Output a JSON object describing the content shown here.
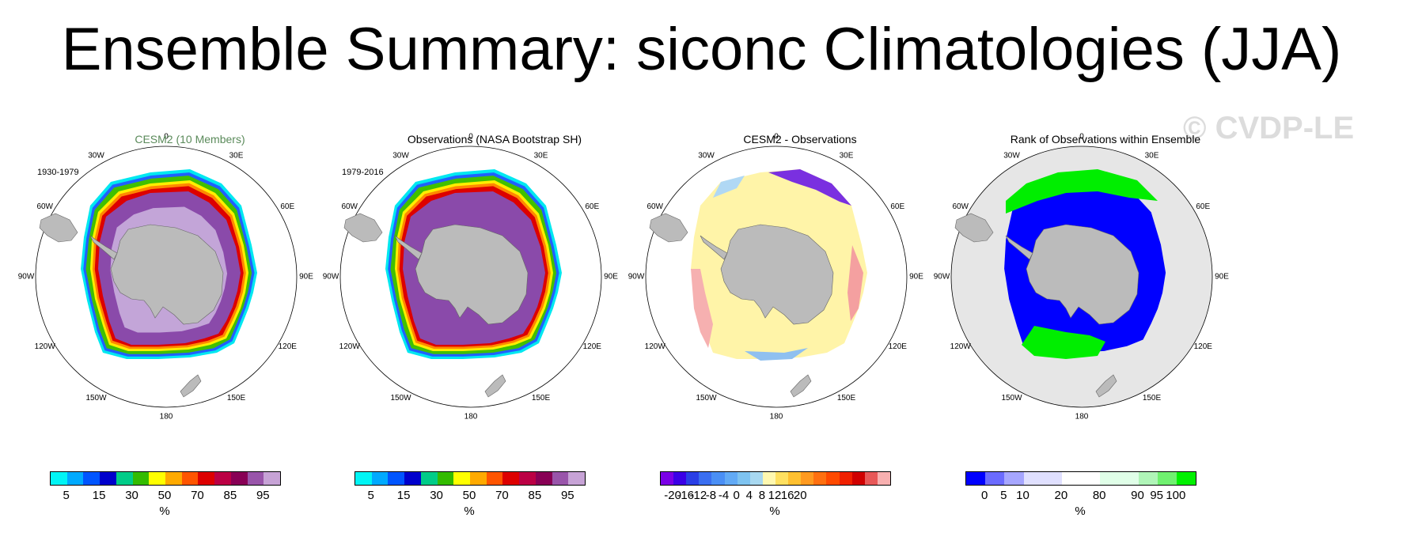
{
  "title": "Ensemble Summary: siconc Climatologies (JJA)",
  "watermark": "© CVDP-LE",
  "lon_labels": [
    "0",
    "30E",
    "60E",
    "90E",
    "120E",
    "150E",
    "180",
    "150W",
    "120W",
    "90W",
    "60W",
    "30W"
  ],
  "panels": [
    {
      "title": "CESM2 (10 Members)",
      "title_color": "#5a8a5a",
      "period": "1930-1979",
      "units": "%",
      "colors": [
        "#00f5f5",
        "#00aaff",
        "#0055ff",
        "#0000cc",
        "#00cc88",
        "#33bb00",
        "#ffff00",
        "#ffaa00",
        "#ff5500",
        "#dd0000",
        "#bb0044",
        "#880055",
        "#9955aa",
        "#c7a3d6"
      ],
      "tick_labels": [
        "5",
        "15",
        "30",
        "50",
        "70",
        "85",
        "95"
      ]
    },
    {
      "title": "Observations (NASA Bootstrap SH)",
      "title_color": "#000000",
      "period": "1979-2016",
      "units": "%",
      "colors": [
        "#00f5f5",
        "#00aaff",
        "#0055ff",
        "#0000cc",
        "#00cc88",
        "#33bb00",
        "#ffff00",
        "#ffaa00",
        "#ff5500",
        "#dd0000",
        "#bb0044",
        "#880055",
        "#9955aa",
        "#c7a3d6"
      ],
      "tick_labels": [
        "5",
        "15",
        "30",
        "50",
        "70",
        "85",
        "95"
      ]
    },
    {
      "title": "CESM2 - Observations",
      "title_color": "#000000",
      "period": "",
      "units": "%",
      "colors": [
        "#7a00e6",
        "#3b00e6",
        "#2a3fe6",
        "#3a6ef0",
        "#4a8ff5",
        "#62aaf5",
        "#7ec3f0",
        "#a8d8f0",
        "#fff8b0",
        "#ffe060",
        "#ffc030",
        "#ff9a20",
        "#ff7010",
        "#ff4a00",
        "#f02000",
        "#d00000",
        "#e85858",
        "#f8b0b0"
      ],
      "tick_labels": [
        "-20",
        "-16",
        "-12",
        "-8",
        "-4",
        "0",
        "4",
        "8",
        "12",
        "16",
        "20"
      ]
    },
    {
      "title": "Rank of Observations within Ensemble",
      "title_color": "#000000",
      "period": "",
      "units": "%",
      "colors": [
        "#0000ff",
        "#6b6bff",
        "#a6a6ff",
        "#e0e0ff",
        "#e0e0ff",
        "#ffffff",
        "#ffffff",
        "#e0ffe8",
        "#e0ffe8",
        "#b0f5b8",
        "#70f070",
        "#00f000"
      ],
      "tick_labels": [
        "0",
        "5",
        "10",
        "20",
        "80",
        "90",
        "95",
        "100"
      ]
    }
  ]
}
